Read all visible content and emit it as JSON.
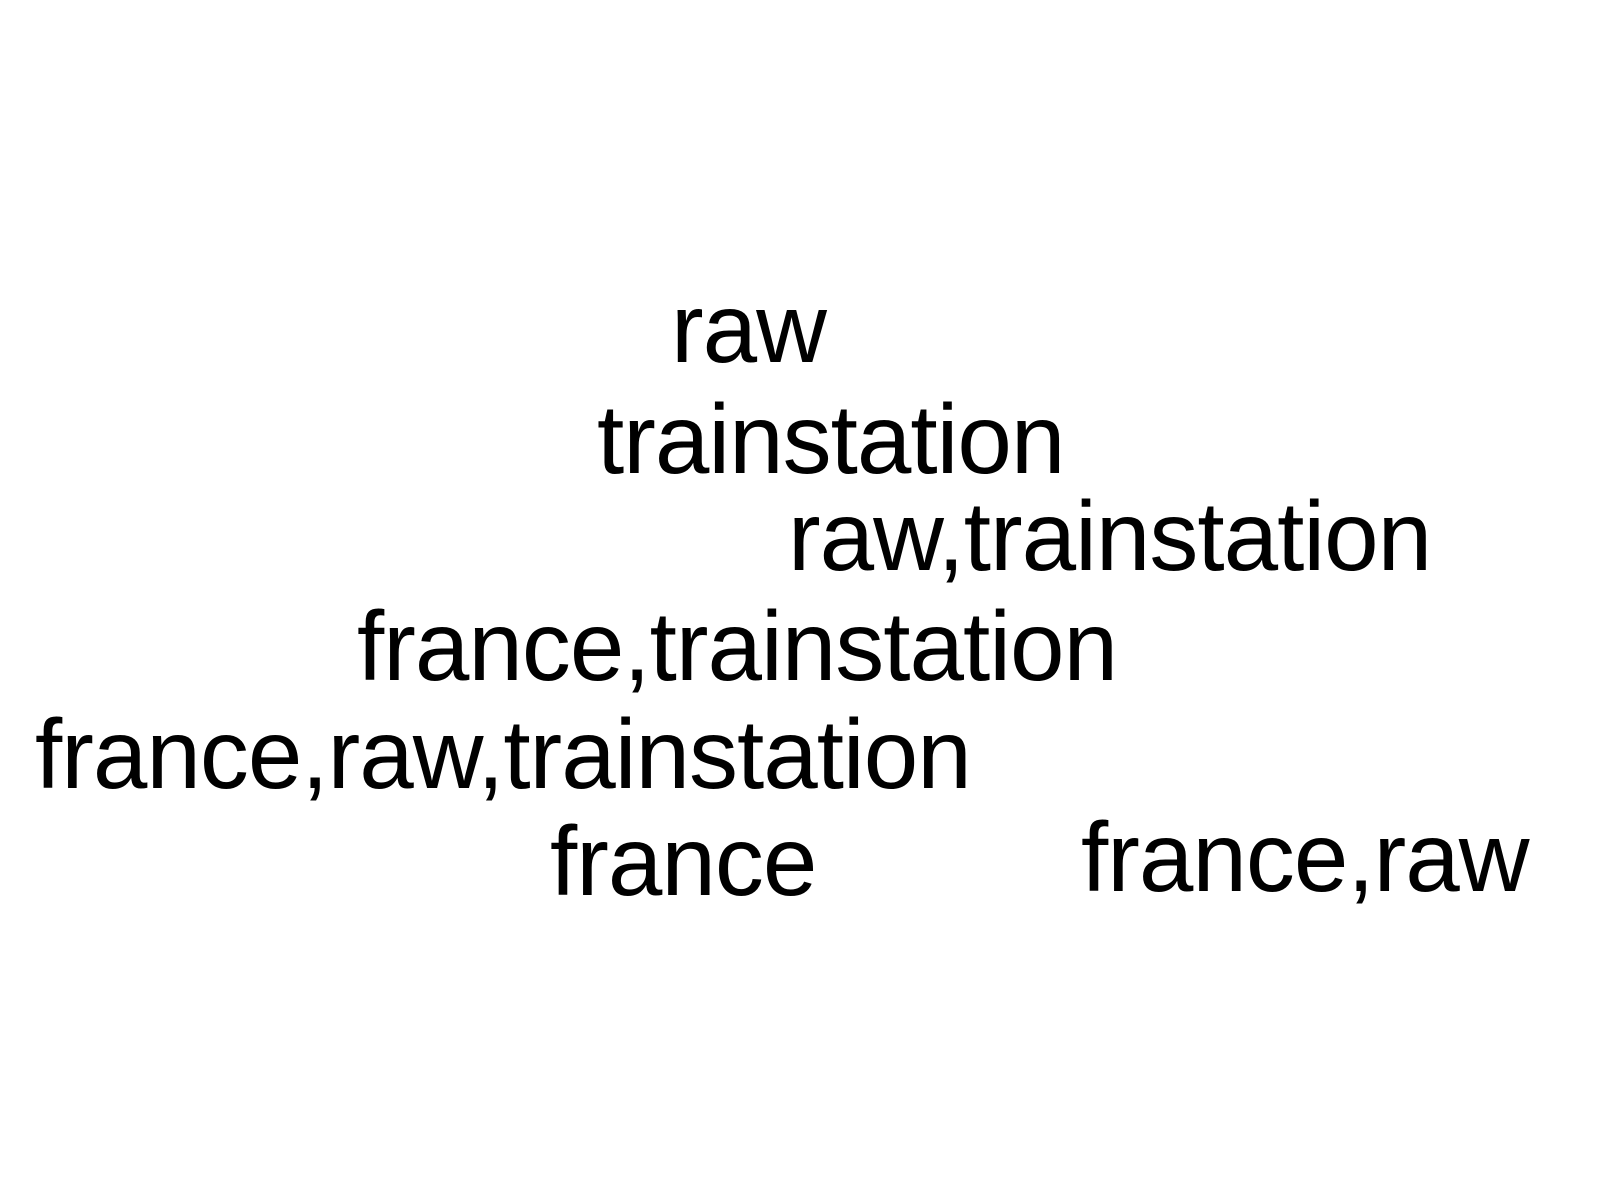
{
  "text_color": "#000000",
  "background_color": "#ffffff",
  "words": [
    "raw",
    "trainstation",
    "raw,trainstation",
    "france,trainstation",
    "france,raw,trainstation",
    "france",
    "france,raw"
  ]
}
